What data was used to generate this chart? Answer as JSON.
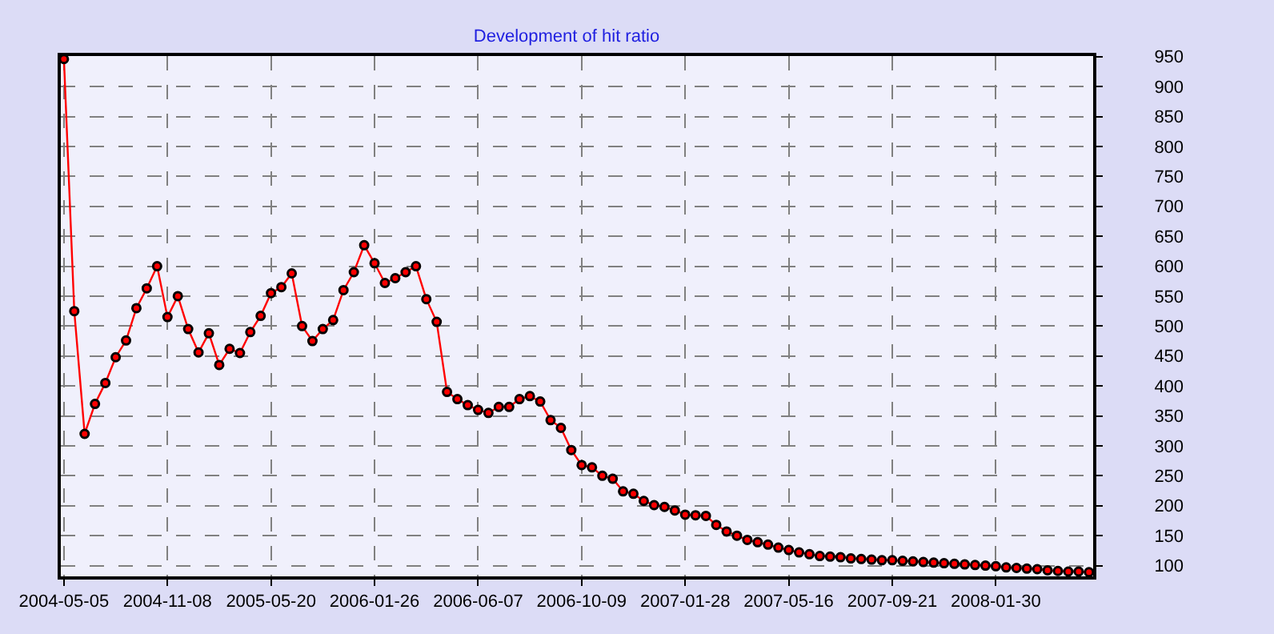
{
  "chart_data": {
    "type": "line",
    "title": "Development of hit ratio",
    "categories": [
      "2004-05-05",
      null,
      null,
      null,
      null,
      null,
      null,
      null,
      null,
      null,
      "2004-11-08",
      null,
      null,
      null,
      null,
      null,
      null,
      null,
      null,
      null,
      "2005-05-20",
      null,
      null,
      null,
      null,
      null,
      null,
      null,
      null,
      null,
      "2006-01-26",
      null,
      null,
      null,
      null,
      null,
      null,
      null,
      null,
      null,
      "2006-06-07",
      null,
      null,
      null,
      null,
      null,
      null,
      null,
      null,
      null,
      "2006-10-09",
      null,
      null,
      null,
      null,
      null,
      null,
      null,
      null,
      null,
      "2007-01-28",
      null,
      null,
      null,
      null,
      null,
      null,
      null,
      null,
      null,
      "2007-05-16",
      null,
      null,
      null,
      null,
      null,
      null,
      null,
      null,
      null,
      "2007-09-21",
      null,
      null,
      null,
      null,
      null,
      null,
      null,
      null,
      null,
      "2008-01-30",
      null,
      null,
      null,
      null,
      null,
      null,
      null,
      null,
      null
    ],
    "series": [
      {
        "color": "#ff0000",
        "values": [
          946,
          525,
          320,
          370,
          405,
          448,
          476,
          530,
          563,
          600,
          515,
          550,
          495,
          456,
          488,
          435,
          462,
          455,
          490,
          517,
          555,
          565,
          588,
          500,
          475,
          495,
          510,
          560,
          590,
          635,
          605,
          572,
          580,
          590,
          600,
          545,
          507,
          390,
          378,
          368,
          360,
          355,
          365,
          365,
          378,
          383,
          374,
          343,
          330,
          293,
          268,
          264,
          250,
          245,
          224,
          220,
          208,
          201,
          198,
          192,
          185,
          184,
          183,
          168,
          157,
          150,
          143,
          139,
          135,
          130,
          126,
          122,
          119,
          116,
          115,
          114,
          112,
          111,
          110,
          109,
          109,
          108,
          107,
          106,
          105,
          104,
          103,
          102,
          101,
          100,
          99,
          97,
          96,
          95,
          94,
          92,
          91,
          90,
          90,
          89
        ]
      }
    ],
    "ylim": [
      82,
      951
    ],
    "yticks": [
      100,
      150,
      200,
      250,
      300,
      350,
      400,
      450,
      500,
      550,
      600,
      650,
      700,
      750,
      800,
      850,
      900,
      950
    ],
    "grid": true,
    "marker": "circle",
    "line_style": "solid"
  }
}
